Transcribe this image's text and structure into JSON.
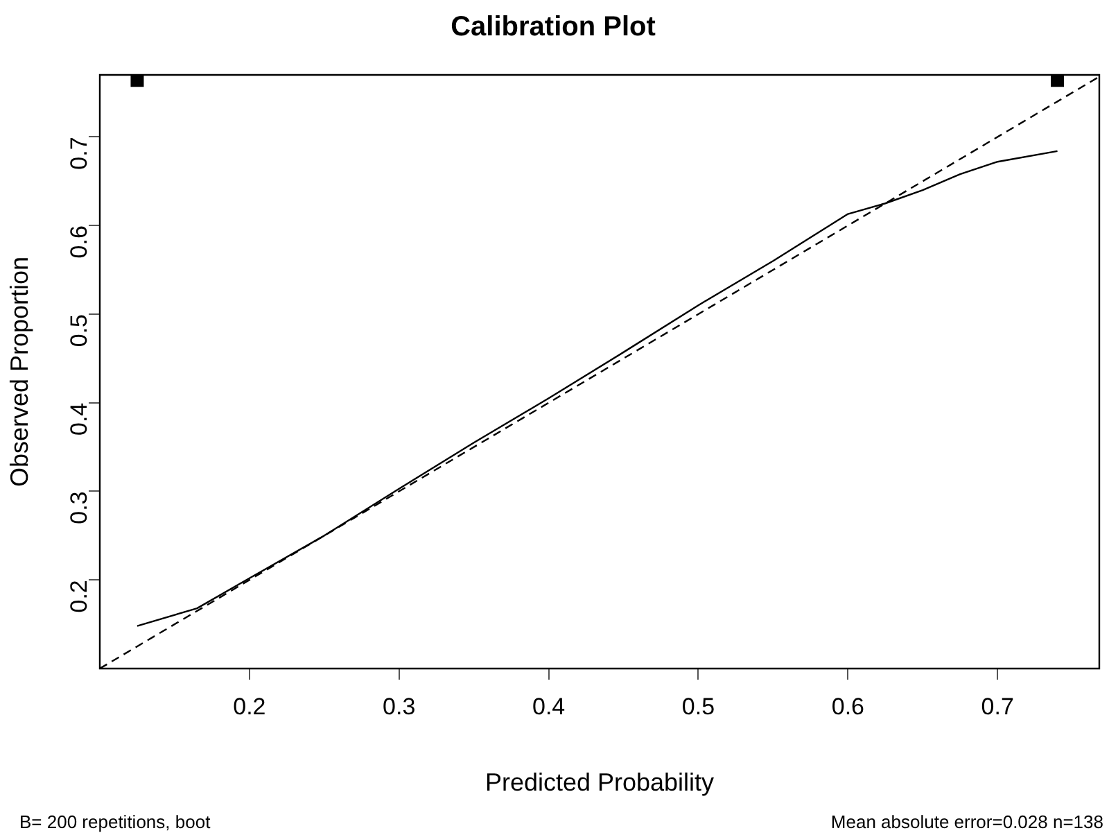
{
  "chart_data": {
    "type": "line",
    "title": "Calibration Plot",
    "xlabel": "Predicted Probability",
    "ylabel": "Observed Proportion",
    "annotations": [
      "B= 200 repetitions, boot",
      "Mean absolute error=0.028 n=138"
    ],
    "xlim": [
      0.1,
      0.768
    ],
    "ylim": [
      0.1,
      0.77
    ],
    "xticks": [
      0.2,
      0.3,
      0.4,
      0.5,
      0.6,
      0.7
    ],
    "yticks": [
      0.2,
      0.3,
      0.4,
      0.5,
      0.6,
      0.7
    ],
    "series": [
      {
        "color": "#000000",
        "line_style": "dashed",
        "x": [
          0.1,
          0.768
        ],
        "values": [
          0.1,
          0.768
        ]
      },
      {
        "color": "#000000",
        "line_style": "solid",
        "x": [
          0.125,
          0.165,
          0.2,
          0.25,
          0.3,
          0.35,
          0.4,
          0.45,
          0.5,
          0.55,
          0.6,
          0.625,
          0.65,
          0.675,
          0.7,
          0.74
        ],
        "values": [
          0.148,
          0.168,
          0.202,
          0.25,
          0.303,
          0.355,
          0.405,
          0.457,
          0.51,
          0.56,
          0.613,
          0.625,
          0.64,
          0.658,
          0.672,
          0.684
        ]
      },
      {
        "type": "scatter",
        "color": "#000000",
        "marker": "square",
        "x": [
          0.125,
          0.74
        ],
        "values": [
          0.764,
          0.764
        ]
      }
    ]
  }
}
